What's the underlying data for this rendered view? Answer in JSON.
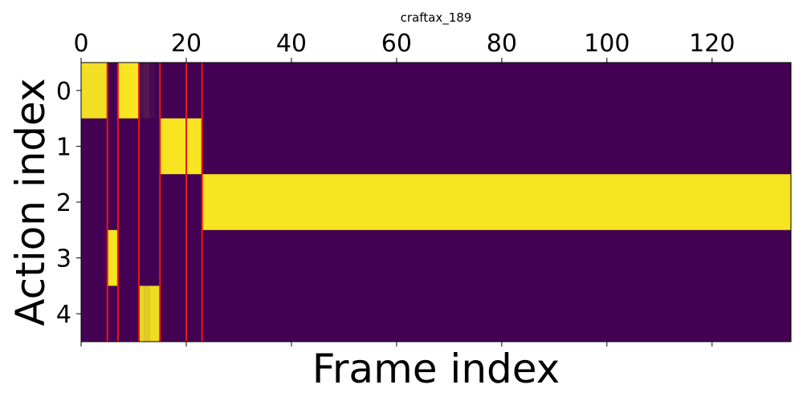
{
  "chart_data": {
    "type": "heatmap",
    "title": "craftax_189",
    "xlabel": "Frame index",
    "ylabel": "Action index",
    "x_axis_position": "top",
    "xlim": [
      0,
      135
    ],
    "ylim": [
      4.5,
      -0.5
    ],
    "x_ticks": [
      0,
      20,
      40,
      60,
      80,
      100,
      120
    ],
    "y_ticks": [
      0,
      1,
      2,
      3,
      4
    ],
    "n_frames": 135,
    "n_actions": 5,
    "colormap": "viridis",
    "colors": {
      "low": "#440154",
      "high": "#f7e521",
      "vline": "#e8190e"
    },
    "cells": [
      {
        "row": 0,
        "x_start": 0,
        "x_end": 5,
        "value": 0.97
      },
      {
        "row": 0,
        "x_start": 7,
        "x_end": 11,
        "value": 1.0
      },
      {
        "row": 0,
        "x_start": 11,
        "x_end": 12,
        "value": 0.06
      },
      {
        "row": 0,
        "x_start": 12,
        "x_end": 13,
        "value": 0.1
      },
      {
        "row": 0,
        "x_start": 13,
        "x_end": 14,
        "value": 0.04
      },
      {
        "row": 1,
        "x_start": 15,
        "x_end": 23,
        "value": 1.0
      },
      {
        "row": 2,
        "x_start": 23,
        "x_end": 135,
        "value": 1.0
      },
      {
        "row": 3,
        "x_start": 5,
        "x_end": 7,
        "value": 1.0
      },
      {
        "row": 4,
        "x_start": 11,
        "x_end": 12,
        "value": 0.93
      },
      {
        "row": 4,
        "x_start": 12,
        "x_end": 13,
        "value": 0.88
      },
      {
        "row": 4,
        "x_start": 13,
        "x_end": 15,
        "value": 0.96
      }
    ],
    "vlines": [
      5,
      7,
      11,
      15,
      20,
      23
    ]
  }
}
